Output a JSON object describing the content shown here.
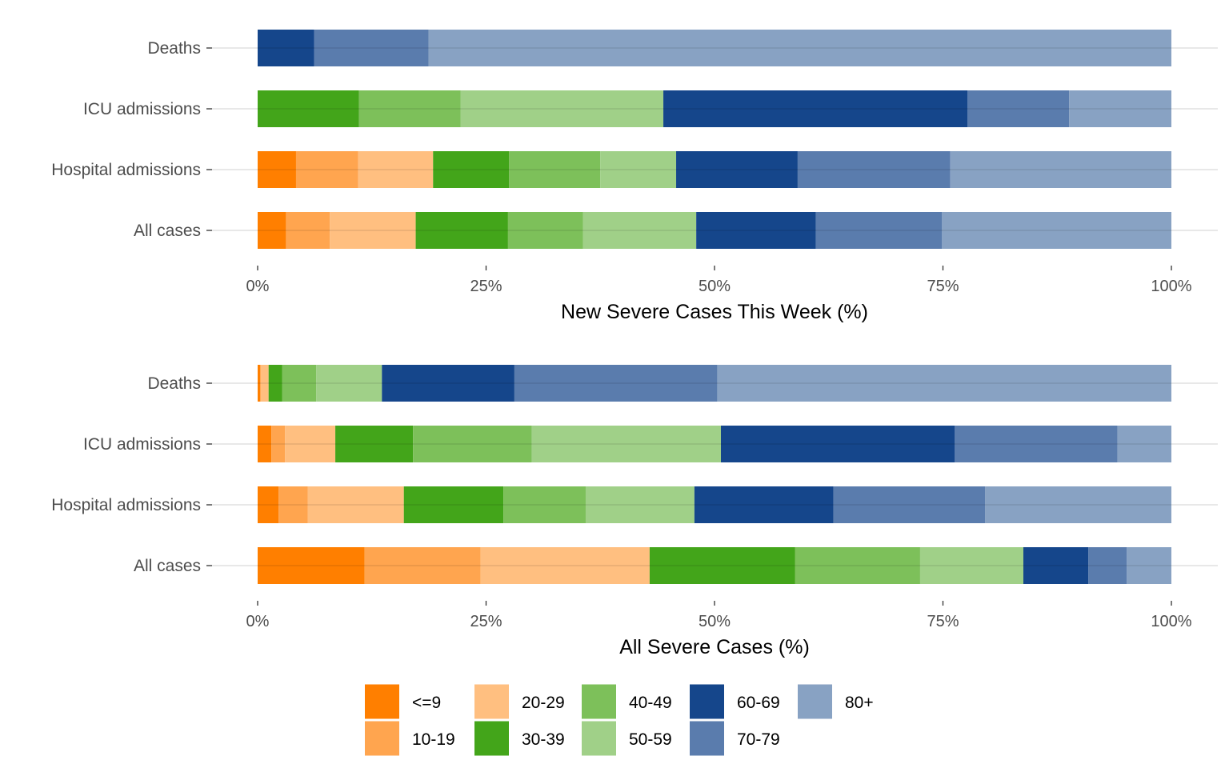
{
  "legend": {
    "entries": [
      {
        "label": "<=9",
        "color": "#ff7f00"
      },
      {
        "label": "10-19",
        "color": "#ffa54f"
      },
      {
        "label": "20-29",
        "color": "#ffbf80"
      },
      {
        "label": "30-39",
        "color": "#43a51a"
      },
      {
        "label": "40-49",
        "color": "#7dc05a"
      },
      {
        "label": "50-59",
        "color": "#a0d088"
      },
      {
        "label": "60-69",
        "color": "#15468b"
      },
      {
        "label": "70-79",
        "color": "#5a7cad"
      },
      {
        "label": "80+",
        "color": "#88a2c3"
      }
    ]
  },
  "chart_data": [
    {
      "type": "bar",
      "orientation": "horizontal",
      "stacked": true,
      "xlabel": "New Severe Cases This Week (%)",
      "ylabel": "",
      "xlim": [
        0,
        100
      ],
      "x_ticks": [
        "0%",
        "25%",
        "50%",
        "75%",
        "100%"
      ],
      "grid": "horizontal lines at categories",
      "categories": [
        "Deaths",
        "ICU admissions",
        "Hospital admissions",
        "All cases"
      ],
      "series": [
        {
          "name": "<=9",
          "values": [
            0,
            0,
            4.2,
            3.1
          ]
        },
        {
          "name": "10-19",
          "values": [
            0,
            0,
            6.8,
            4.8
          ]
        },
        {
          "name": "20-29",
          "values": [
            0,
            0,
            8.2,
            9.4
          ]
        },
        {
          "name": "30-39",
          "values": [
            0,
            11.1,
            8.3,
            10.1
          ]
        },
        {
          "name": "40-49",
          "values": [
            0,
            11.1,
            10.0,
            8.2
          ]
        },
        {
          "name": "50-59",
          "values": [
            0,
            22.2,
            8.3,
            12.4
          ]
        },
        {
          "name": "60-69",
          "values": [
            6.2,
            33.3,
            13.3,
            13.1
          ]
        },
        {
          "name": "70-79",
          "values": [
            12.5,
            11.1,
            16.7,
            13.8
          ]
        },
        {
          "name": "80+",
          "values": [
            81.3,
            11.2,
            24.2,
            25.1
          ]
        }
      ]
    },
    {
      "type": "bar",
      "orientation": "horizontal",
      "stacked": true,
      "xlabel": "All Severe Cases (%)",
      "ylabel": "",
      "xlim": [
        0,
        100
      ],
      "x_ticks": [
        "0%",
        "25%",
        "50%",
        "75%",
        "100%"
      ],
      "grid": "horizontal lines at categories",
      "categories": [
        "Deaths",
        "ICU admissions",
        "Hospital admissions",
        "All cases"
      ],
      "series": [
        {
          "name": "<=9",
          "values": [
            0.3,
            1.5,
            2.3,
            11.7
          ]
        },
        {
          "name": "10-19",
          "values": [
            0,
            1.5,
            3.2,
            12.7
          ]
        },
        {
          "name": "20-29",
          "values": [
            0.9,
            5.5,
            10.5,
            18.5
          ]
        },
        {
          "name": "30-39",
          "values": [
            1.5,
            8.5,
            10.9,
            15.9
          ]
        },
        {
          "name": "40-49",
          "values": [
            3.7,
            13.0,
            9.0,
            13.7
          ]
        },
        {
          "name": "50-59",
          "values": [
            7.2,
            20.7,
            11.9,
            11.3
          ]
        },
        {
          "name": "60-69",
          "values": [
            14.5,
            25.6,
            15.2,
            7.1
          ]
        },
        {
          "name": "70-79",
          "values": [
            22.2,
            17.8,
            16.6,
            4.2
          ]
        },
        {
          "name": "80+",
          "values": [
            49.7,
            5.9,
            20.4,
            4.9
          ]
        }
      ]
    }
  ]
}
